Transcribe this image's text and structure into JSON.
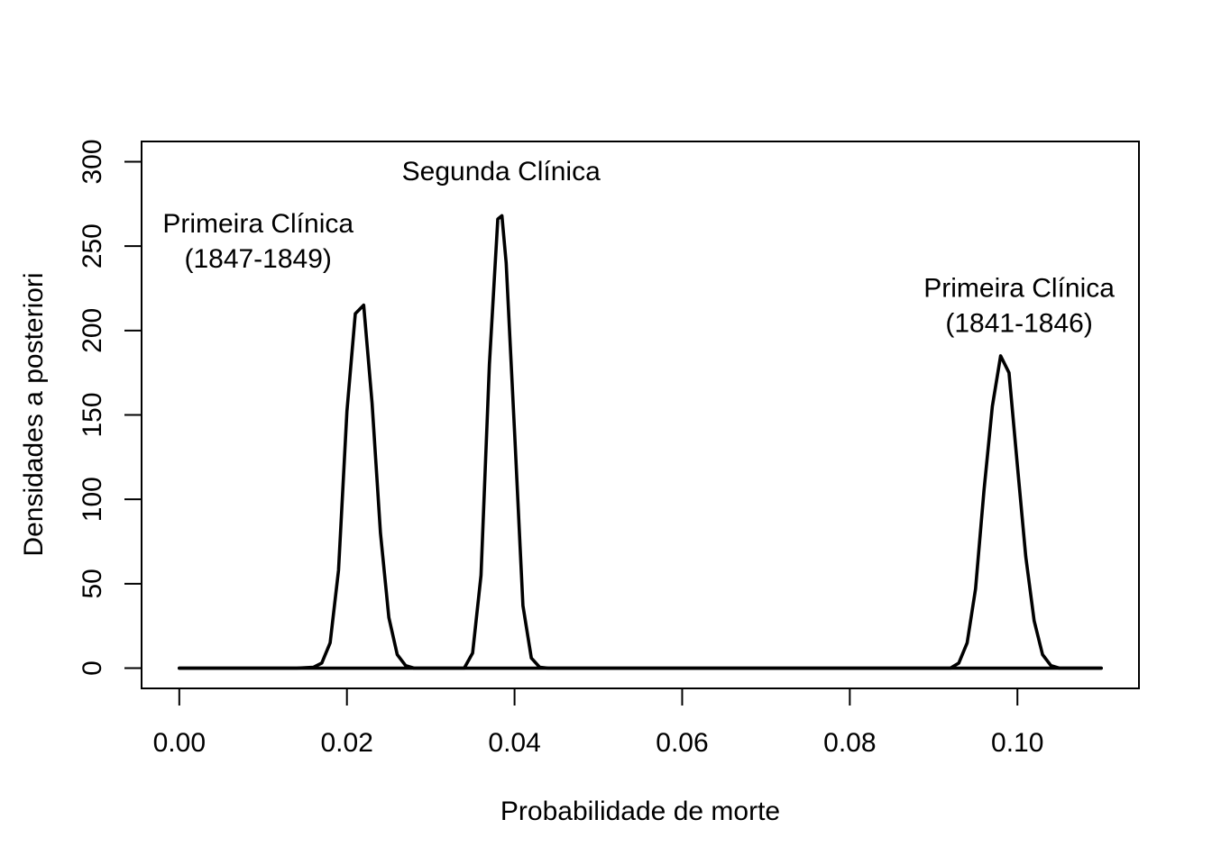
{
  "chart_data": {
    "type": "line",
    "title": "",
    "xlabel": "Probabilidade de morte",
    "ylabel": "Densidades a posteriori",
    "xlim": [
      -0.0045,
      0.1145
    ],
    "ylim": [
      -12,
      312
    ],
    "x_ticks": [
      0.0,
      0.02,
      0.04,
      0.06,
      0.08,
      0.1
    ],
    "x_tick_labels": [
      "0.00",
      "0.02",
      "0.04",
      "0.06",
      "0.08",
      "0.10"
    ],
    "y_ticks": [
      0,
      50,
      100,
      150,
      200,
      250,
      300
    ],
    "y_tick_labels": [
      "0",
      "50",
      "100",
      "150",
      "200",
      "250",
      "300"
    ],
    "grid": false,
    "legend": "none",
    "line_color": "#000000",
    "series": [
      {
        "x": [
          0.0,
          0.011,
          0.014,
          0.016,
          0.017,
          0.018,
          0.019,
          0.02,
          0.021,
          0.022,
          0.023,
          0.024,
          0.025,
          0.026,
          0.027,
          0.028,
          0.029,
          0.033,
          0.034,
          0.035,
          0.036,
          0.037,
          0.038,
          0.0385,
          0.039,
          0.04,
          0.041,
          0.042,
          0.043,
          0.044,
          0.046,
          0.088,
          0.092,
          0.093,
          0.094,
          0.095,
          0.096,
          0.097,
          0.098,
          0.099,
          0.1,
          0.101,
          0.102,
          0.103,
          0.104,
          0.105,
          0.106,
          0.11
        ],
        "values": [
          0,
          0,
          0,
          0.5,
          3,
          15,
          58,
          152,
          210,
          215,
          157,
          80,
          30,
          8,
          1.5,
          0,
          0,
          0,
          0,
          9,
          55,
          180,
          266,
          268,
          240,
          140,
          37,
          6,
          0.5,
          0,
          0,
          0,
          0,
          3,
          15,
          47,
          105,
          155,
          185,
          175,
          120,
          66,
          28,
          8,
          1.5,
          0,
          0,
          0
        ]
      }
    ],
    "baseline": {
      "x": [
        0.0,
        0.11
      ],
      "y": [
        0,
        0
      ]
    },
    "annotations": [
      {
        "lines": [
          "Primeira Clínica",
          "(1847-1849)"
        ],
        "x": 0.0094,
        "y": 258
      },
      {
        "lines": [
          "Segunda Clínica"
        ],
        "x": 0.0384,
        "y": 289
      },
      {
        "lines": [
          "Primeira Clínica",
          "(1841-1846)"
        ],
        "x": 0.1002,
        "y": 220
      }
    ]
  }
}
